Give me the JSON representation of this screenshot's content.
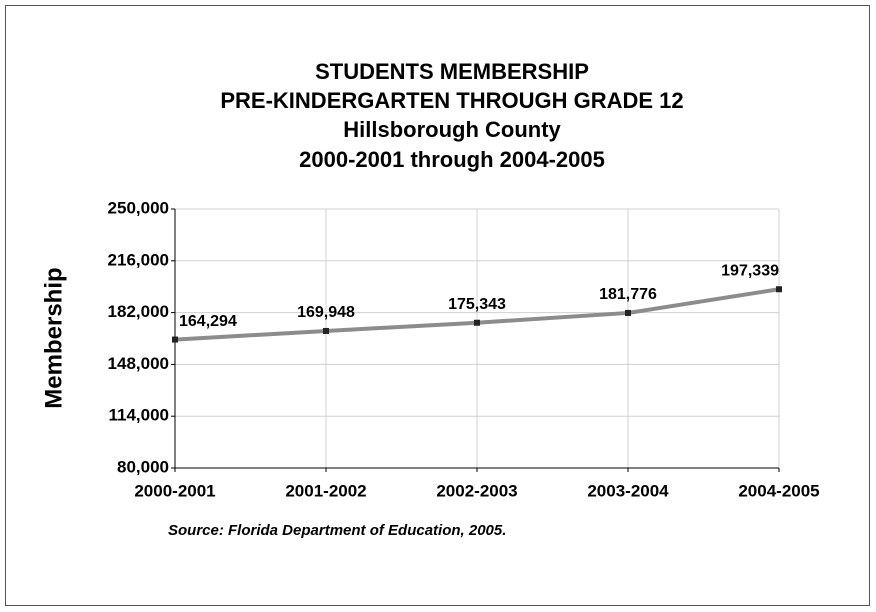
{
  "chart_data": {
    "type": "line",
    "title": [
      "STUDENTS MEMBERSHIP",
      "PRE-KINDERGARTEN THROUGH GRADE 12",
      "Hillsborough County",
      "2000-2001 through 2004-2005"
    ],
    "ylabel": "Membership",
    "source": "Source:  Florida Department of Education, 2005.",
    "categories": [
      "2000-2001",
      "2001-2002",
      "2002-2003",
      "2003-2004",
      "2004-2005"
    ],
    "series": [
      {
        "name": "Membership",
        "color": "#8c8c8c",
        "values": [
          164294,
          169948,
          175343,
          181776,
          197339
        ],
        "value_labels": [
          "164,294",
          "169,948",
          "175,343",
          "181,776",
          "197,339"
        ]
      }
    ],
    "ylim": [
      80000,
      250000
    ],
    "yticks": [
      {
        "value": 80000,
        "label": "80,000"
      },
      {
        "value": 114000,
        "label": "114,000"
      },
      {
        "value": 148000,
        "label": "148,000"
      },
      {
        "value": 182000,
        "label": "182,000"
      },
      {
        "value": 216000,
        "label": "216,000"
      },
      {
        "value": 250000,
        "label": "250,000"
      }
    ],
    "grid": true
  }
}
